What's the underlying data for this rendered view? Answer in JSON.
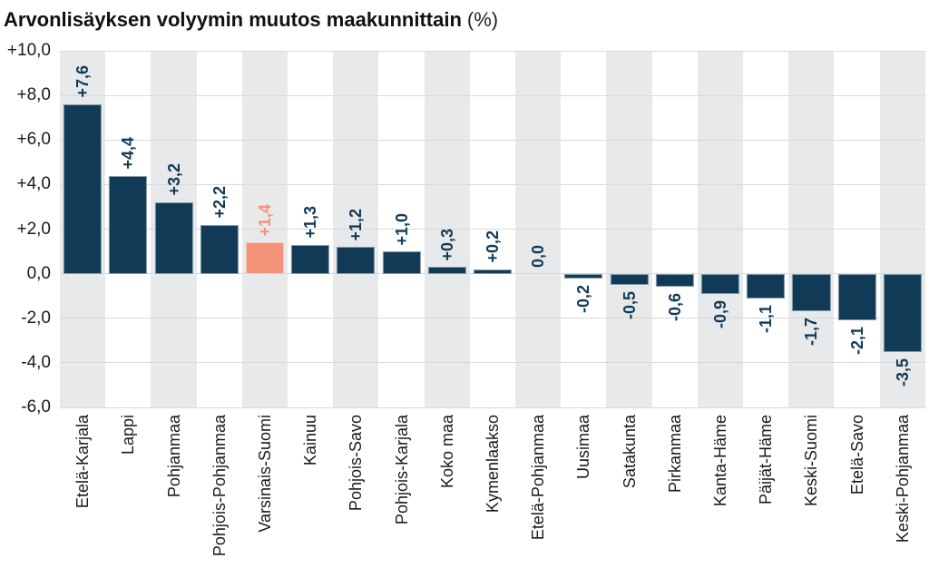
{
  "title": {
    "main": "Arvonlisäyksen volyymin muutos maakunnittain",
    "suffix": "(%)"
  },
  "chart_data": {
    "type": "bar",
    "title": "Arvonlisäyksen volyymin muutos maakunnittain (%)",
    "xlabel": "",
    "ylabel": "",
    "ylim": [
      -6,
      10
    ],
    "grid": "horizontal",
    "legend": "none",
    "decimal_separator": ",",
    "categories": [
      "Etelä-Karjala",
      "Lappi",
      "Pohjanmaa",
      "Pohjois-Pohjanmaa",
      "Varsinais-Suomi",
      "Kainuu",
      "Pohjois-Savo",
      "Pohjois-Karjala",
      "Koko maa",
      "Kymenlaakso",
      "Etelä-Pohjanmaa",
      "Uusimaa",
      "Satakunta",
      "Pirkanmaa",
      "Kanta-Häme",
      "Päijät-Häme",
      "Keski-Suomi",
      "Etelä-Savo",
      "Keski-Pohjanmaa"
    ],
    "values": [
      7.6,
      4.4,
      3.2,
      2.2,
      1.4,
      1.3,
      1.2,
      1.0,
      0.3,
      0.2,
      0.0,
      -0.2,
      -0.5,
      -0.6,
      -0.9,
      -1.1,
      -1.7,
      -2.1,
      -3.5
    ],
    "value_labels": [
      "+7,6",
      "+4,4",
      "+3,2",
      "+2,2",
      "+1,4",
      "+1,3",
      "+1,2",
      "+1,0",
      "+0,3",
      "+0,2",
      "0,0",
      "-0,2",
      "-0,5",
      "-0,6",
      "-0,9",
      "-1,1",
      "-1,7",
      "-2,1",
      "-3,5"
    ],
    "highlight_index": 4,
    "highlighted_category": "Varsinais-Suomi",
    "y_ticks": [
      {
        "label": "+10,0",
        "value": 10
      },
      {
        "label": "+8,0",
        "value": 8
      },
      {
        "label": "+6,0",
        "value": 6
      },
      {
        "label": "+4,0",
        "value": 4
      },
      {
        "label": "+2,0",
        "value": 2
      },
      {
        "label": "0,0",
        "value": 0
      },
      {
        "label": "-2,0",
        "value": -2
      },
      {
        "label": "-4,0",
        "value": -4
      },
      {
        "label": "-6,0",
        "value": -6
      }
    ],
    "colors": {
      "bar": "#113a56",
      "highlight": "#f4937a",
      "stripe": "#e8e9eb",
      "gridline": "#d8d9da",
      "text": "#1a1a1a"
    }
  }
}
